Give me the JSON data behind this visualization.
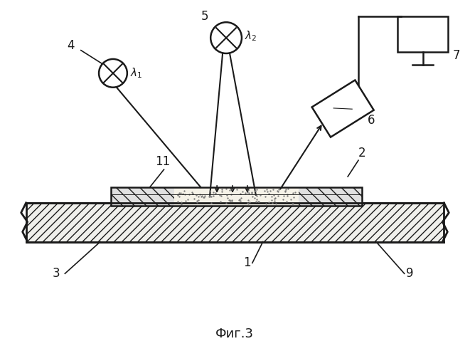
{
  "title": "Фиг.3",
  "background_color": "#ffffff",
  "fig_width": 6.61,
  "fig_height": 5.0,
  "dpi": 100,
  "black": "#1a1a1a"
}
